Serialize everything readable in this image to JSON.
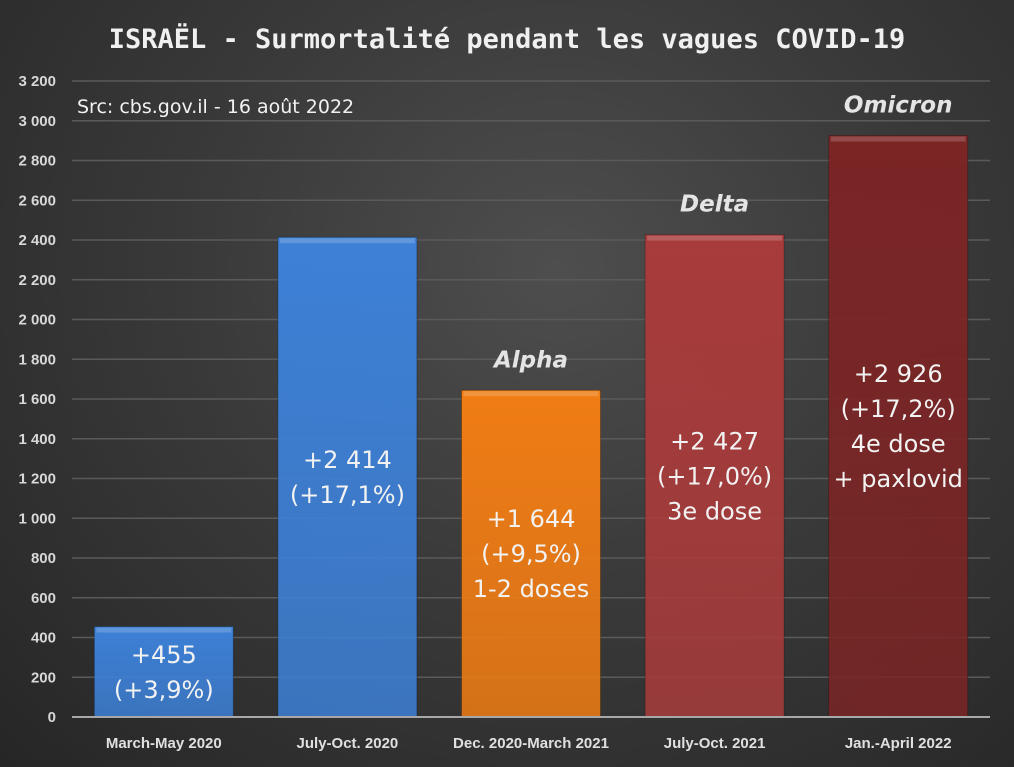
{
  "chart_data": {
    "type": "bar",
    "title": "ISRAËL - Surmortalité pendant les vagues COVID-19",
    "subtitle": "Src: cbs.gov.il - 16 août 2022",
    "xlabel": "",
    "ylabel": "",
    "ylim": [
      0,
      3200
    ],
    "ytick_step": 200,
    "yticks": [
      "0",
      "200",
      "400",
      "600",
      "800",
      "1 000",
      "1 200",
      "1 400",
      "1 600",
      "1 800",
      "2 000",
      "2 200",
      "2 400",
      "2 600",
      "2 800",
      "3 000",
      "3 200"
    ],
    "grid": true,
    "categories": [
      "March-May 2020",
      "July-Oct. 2020",
      "Dec. 2020-March 2021",
      "July-Oct. 2021",
      "Jan.-April 2022"
    ],
    "values": [
      455,
      2414,
      1644,
      2427,
      2926
    ],
    "colors": [
      "#3d80d6",
      "#3d80d6",
      "#f07c14",
      "#a83b3b",
      "#7b2525"
    ],
    "data_labels": [
      [
        "+455",
        "(+3,9%)"
      ],
      [
        "+2 414",
        "(+17,1%)"
      ],
      [
        "+1 644",
        "(+9,5%)",
        "1-2 doses"
      ],
      [
        "+2 427",
        "(+17,0%)",
        "3e dose"
      ],
      [
        "+2 926",
        "(+17,2%)",
        "4e dose",
        "+ paxlovid"
      ]
    ],
    "variant_labels": [
      "",
      "",
      "Alpha",
      "Delta",
      "Omicron"
    ]
  }
}
